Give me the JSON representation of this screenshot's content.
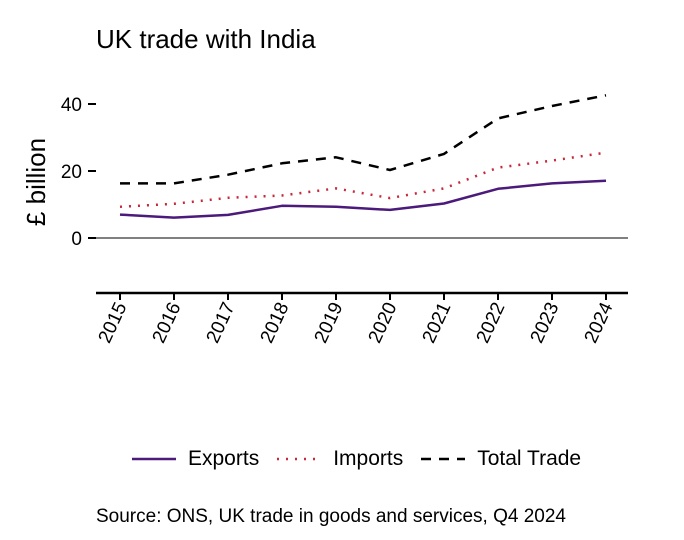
{
  "chart_data": {
    "type": "line",
    "title": "UK trade with India",
    "ylabel": "£ billion",
    "xlabel": "",
    "source": "Source: ONS, UK trade in goods and services, Q4 2024",
    "categories": [
      "2015",
      "2016",
      "2017",
      "2018",
      "2019",
      "2020",
      "2021",
      "2022",
      "2023",
      "2024"
    ],
    "ylim": [
      -16,
      50
    ],
    "yticks": [
      0,
      20,
      40
    ],
    "ytick_labels": [
      "0",
      "20",
      "40"
    ],
    "grid": false,
    "legend_position": "bottom",
    "series": [
      {
        "name": "Exports",
        "color": "#4b1a7a",
        "style": "solid",
        "values": [
          7.0,
          6.1,
          6.9,
          9.6,
          9.3,
          8.4,
          10.3,
          14.7,
          16.3,
          17.1
        ]
      },
      {
        "name": "Imports",
        "color": "#c8283c",
        "style": "dotted",
        "values": [
          9.3,
          10.2,
          12.0,
          12.7,
          14.8,
          11.9,
          14.8,
          21.0,
          23.1,
          25.5
        ]
      },
      {
        "name": "Total Trade",
        "color": "#000000",
        "style": "dashed",
        "values": [
          16.3,
          16.3,
          18.9,
          22.3,
          24.1,
          20.3,
          25.1,
          35.7,
          39.4,
          42.6
        ]
      }
    ]
  }
}
